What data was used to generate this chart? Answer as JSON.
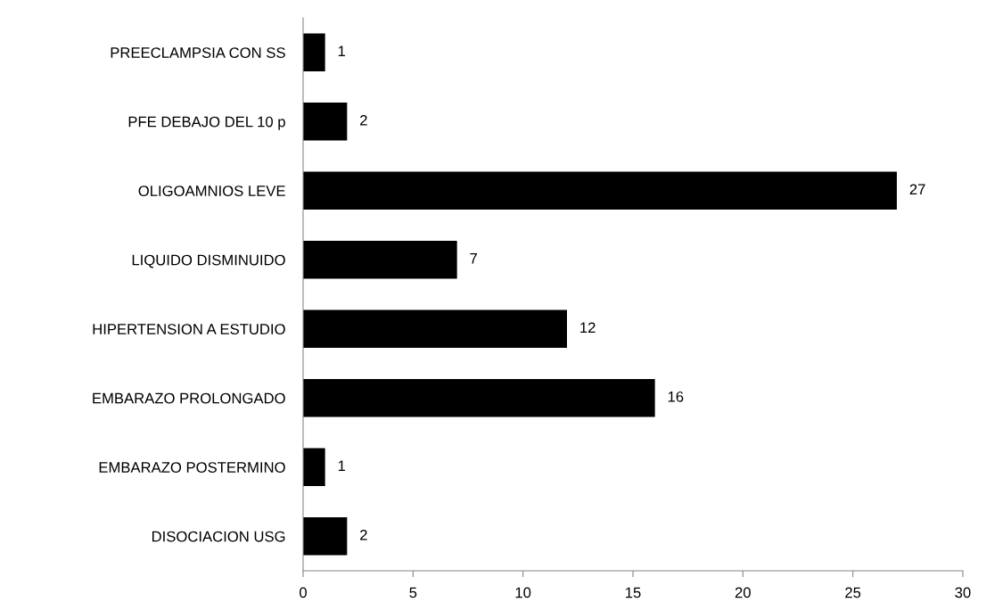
{
  "chart_data": {
    "type": "bar",
    "orientation": "horizontal",
    "categories": [
      "PREECLAMPSIA CON SS",
      "PFE DEBAJO DEL 10 p",
      "OLIGOAMNIOS LEVE",
      "LIQUIDO DISMINUIDO",
      "HIPERTENSION A ESTUDIO",
      "EMBARAZO PROLONGADO",
      "EMBARAZO POSTERMINO",
      "DISOCIACION USG"
    ],
    "values": [
      1,
      2,
      27,
      7,
      12,
      16,
      1,
      2
    ],
    "color": "#000000",
    "xlim": [
      0,
      30
    ],
    "xticks": [
      0,
      5,
      10,
      15,
      20,
      25,
      30
    ],
    "data_labels": true,
    "grid": false,
    "legend": false
  }
}
